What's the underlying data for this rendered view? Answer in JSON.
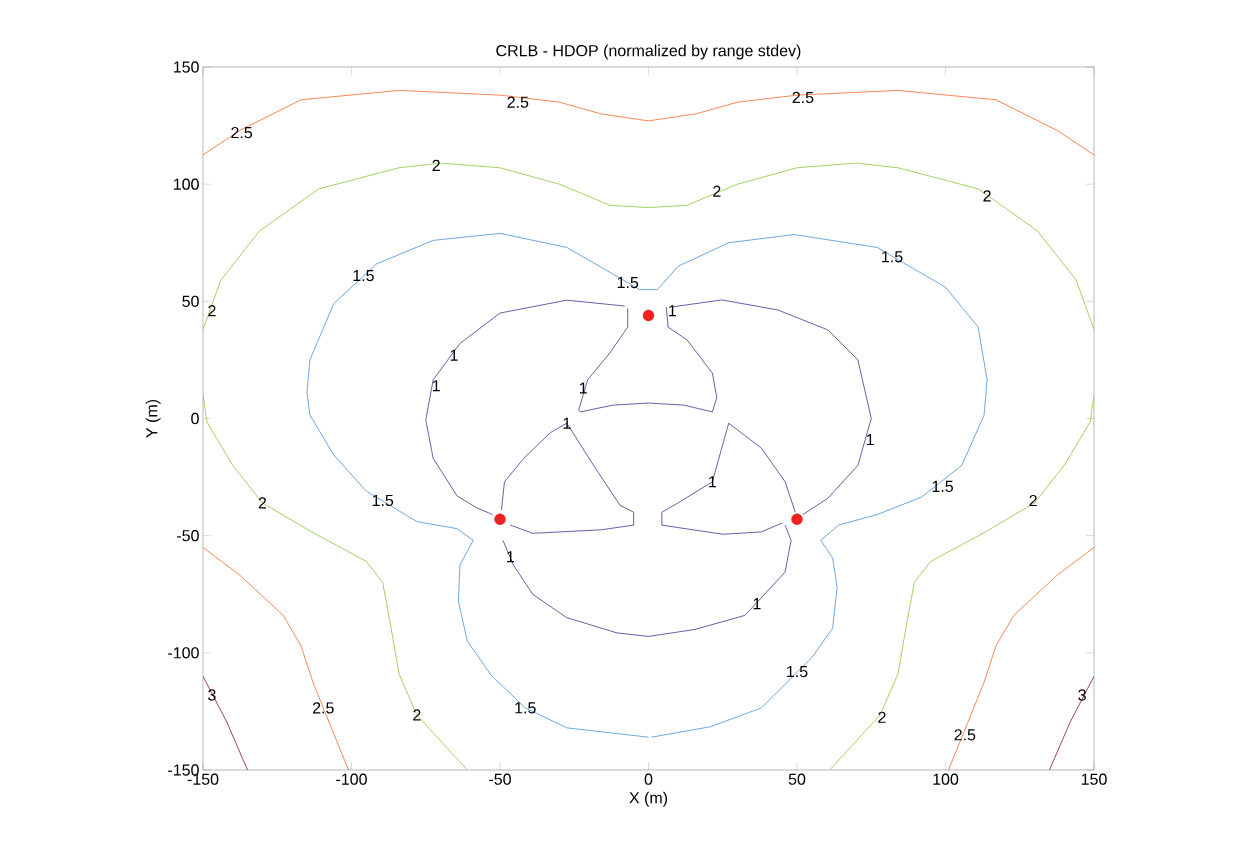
{
  "chart_data": {
    "type": "line",
    "title": "CRLB - HDOP (normalized by range stdev)",
    "xlabel": "X (m)",
    "ylabel": "Y (m)",
    "xlim": [
      -150,
      150
    ],
    "ylim": [
      -150,
      150
    ],
    "xticks": [
      -150,
      -100,
      -50,
      0,
      50,
      100,
      150
    ],
    "yticks": [
      -150,
      -100,
      -50,
      0,
      50,
      100,
      150
    ],
    "grid": false,
    "series": [
      {
        "type": "line",
        "color": "#f26b2a",
        "x": [
          -150,
          -137.5,
          -117,
          -84,
          -50,
          -30,
          -16,
          0,
          16,
          30,
          50,
          84,
          117,
          137.5,
          150
        ],
        "values": [
          112.5,
          123,
          136,
          140,
          138,
          135,
          130,
          127,
          130,
          135,
          138,
          140,
          136,
          123,
          112.5
        ]
      },
      {
        "type": "line",
        "color": "#8cc63f",
        "x": [
          -150,
          -144,
          -131,
          -111,
          -84,
          -70,
          -50,
          -30,
          -13,
          0,
          13,
          30,
          50,
          70,
          84,
          111,
          131,
          144,
          150
        ],
        "values": [
          38,
          59,
          80,
          98,
          107,
          109,
          107,
          100,
          91,
          90,
          91,
          100,
          107,
          109,
          107,
          98,
          80,
          59,
          38
        ]
      },
      {
        "type": "line",
        "color": "#8cc63f",
        "x": [
          -150,
          -148.7,
          -140,
          -130,
          -114,
          -95,
          -89.5,
          -87,
          -84,
          -78,
          -61
        ],
        "values": [
          10,
          -1.5,
          -20,
          -36,
          -48,
          -61,
          -70,
          -87,
          -109,
          -126.5,
          -150
        ]
      },
      {
        "type": "line",
        "color": "#8cc63f",
        "x": [
          150,
          148.7,
          140,
          130,
          114,
          95,
          89.5,
          87,
          84,
          78,
          61
        ],
        "values": [
          10,
          -1.5,
          -20,
          -36,
          -48,
          -61,
          -70,
          -87,
          -109,
          -126.5,
          -150
        ]
      },
      {
        "type": "line",
        "color": "#f26b2a",
        "x": [
          -150,
          -137.5,
          -123,
          -117,
          -113,
          -109.5,
          -101
        ],
        "values": [
          -55,
          -67,
          -84,
          -97,
          -112.5,
          -123.5,
          -150
        ]
      },
      {
        "type": "line",
        "color": "#f26b2a",
        "x": [
          150,
          137.5,
          123,
          117,
          113,
          109.5,
          101
        ],
        "values": [
          -55,
          -67,
          -84,
          -97,
          -112.5,
          -123.5,
          -150
        ]
      },
      {
        "type": "line",
        "color": "#8b1a1a",
        "x": [
          -150,
          -142,
          -135
        ],
        "values": [
          -110,
          -129.5,
          -150
        ]
      },
      {
        "type": "line",
        "color": "#8b1a1a",
        "x": [
          150,
          142,
          135
        ],
        "values": [
          -110,
          -129.5,
          -150
        ]
      },
      {
        "type": "line",
        "color": "#4a90d9",
        "x": [
          0,
          -27.5,
          -41.5,
          -53,
          -61,
          -64,
          -63.5,
          -59,
          -64.5,
          -78,
          -95,
          -106,
          -114,
          -115,
          -114,
          -106,
          -91.5,
          -72.5,
          -50,
          -27.5,
          -7,
          -3,
          3,
          10,
          27,
          49,
          77,
          100,
          111,
          114,
          113,
          105.5,
          92,
          77,
          64,
          58,
          62,
          63.5,
          62,
          55,
          38,
          21,
          1
        ],
        "values": [
          -136,
          -132,
          -123.5,
          -109.5,
          -95,
          -78,
          -62.5,
          -52,
          -47,
          -44,
          -31,
          -15.5,
          1.5,
          11,
          25,
          49,
          66,
          76,
          79,
          73,
          58,
          55,
          55,
          65,
          75,
          78.5,
          73,
          56,
          39,
          16.5,
          1.5,
          -20,
          -33.5,
          -41,
          -45.5,
          -52,
          -59.5,
          -72,
          -89.5,
          -102,
          -123.5,
          -131.5,
          -136
        ]
      },
      {
        "type": "line",
        "color": "#3b3b8f",
        "x": [
          -7,
          -7,
          -13,
          -20.5,
          -23.5,
          -23,
          -12,
          0,
          12,
          21.5,
          23,
          21.5,
          13,
          6.6,
          6
        ],
        "values": [
          47,
          39,
          28,
          16.5,
          3.6,
          2.8,
          5.7,
          6.6,
          5.7,
          2.8,
          9,
          19.4,
          33.5,
          39,
          47.5
        ]
      },
      {
        "type": "line",
        "color": "#3b3b8f",
        "x": [
          -8,
          -27.5,
          -50,
          -63.5,
          -72.5,
          -75,
          -72.5,
          -64.5,
          -58,
          -52.5
        ],
        "values": [
          48,
          50.5,
          45,
          32,
          16.5,
          -0.6,
          -17,
          -33,
          -38,
          -41
        ]
      },
      {
        "type": "line",
        "color": "#3b3b8f",
        "x": [
          -49.5,
          -48.5,
          -42,
          -33,
          -27.5,
          -18.5,
          -9.6,
          -5,
          -5,
          -16,
          -39,
          -46.5
        ],
        "values": [
          -39,
          -27,
          -17,
          -6,
          -2,
          -20,
          -37,
          -40,
          -45.5,
          -47.5,
          -49,
          -45.5
        ]
      },
      {
        "type": "line",
        "color": "#3b3b8f",
        "x": [
          -49,
          -45.5,
          -39,
          -27.5,
          -10.6,
          0,
          15.7,
          32.5,
          46,
          48,
          46
        ],
        "values": [
          -52,
          -62.5,
          -75,
          -85,
          -91.5,
          -93,
          -90,
          -84,
          -65.5,
          -52,
          -45.5
        ]
      },
      {
        "type": "line",
        "color": "#3b3b8f",
        "x": [
          45,
          38,
          25,
          4.5,
          4.5,
          10,
          21.5,
          27,
          38,
          46,
          49.4
        ],
        "values": [
          -44.6,
          -48.4,
          -49.4,
          -45.5,
          -40,
          -36,
          -27,
          -2,
          -12.6,
          -27,
          -40
        ]
      },
      {
        "type": "line",
        "color": "#3b3b8f",
        "x": [
          52,
          60.4,
          70.5,
          75,
          70.5,
          60.4,
          43.6,
          24.7,
          7.9
        ],
        "values": [
          -41,
          -34,
          -20,
          0,
          25,
          37.8,
          46.3,
          50.6,
          47.6
        ]
      },
      {
        "type": "scatter",
        "color": "#ee2222",
        "marker": "circle",
        "x": [
          0,
          -50,
          50
        ],
        "values": [
          44,
          -43,
          -43
        ]
      }
    ],
    "annotations": [
      {
        "text": "2.5",
        "x": -137,
        "y": 122
      },
      {
        "text": "2.5",
        "x": -44,
        "y": 135
      },
      {
        "text": "2.5",
        "x": 52,
        "y": 137
      },
      {
        "text": "2",
        "x": -71.5,
        "y": 108
      },
      {
        "text": "2",
        "x": 23,
        "y": 97
      },
      {
        "text": "2",
        "x": 114,
        "y": 95
      },
      {
        "text": "2",
        "x": -147,
        "y": 46
      },
      {
        "text": "2",
        "x": -130,
        "y": -36
      },
      {
        "text": "2",
        "x": -78,
        "y": -126.5
      },
      {
        "text": "2",
        "x": 129.5,
        "y": -35
      },
      {
        "text": "2",
        "x": 78.6,
        "y": -127.5
      },
      {
        "text": "2.5",
        "x": -109.5,
        "y": -123.5
      },
      {
        "text": "2.5",
        "x": 106.5,
        "y": -135
      },
      {
        "text": "3",
        "x": -147,
        "y": -118
      },
      {
        "text": "3",
        "x": 146,
        "y": -118
      },
      {
        "text": "1.5",
        "x": -96,
        "y": 61
      },
      {
        "text": "1.5",
        "x": -7,
        "y": 58
      },
      {
        "text": "1.5",
        "x": 82,
        "y": 69
      },
      {
        "text": "1.5",
        "x": -89.5,
        "y": -35
      },
      {
        "text": "1.5",
        "x": 99,
        "y": -29
      },
      {
        "text": "1.5",
        "x": -41.5,
        "y": -123.5
      },
      {
        "text": "1.5",
        "x": 50,
        "y": -108
      },
      {
        "text": "1",
        "x": -22,
        "y": 13
      },
      {
        "text": "1",
        "x": -65.5,
        "y": 27
      },
      {
        "text": "1",
        "x": -71.5,
        "y": 14
      },
      {
        "text": "1",
        "x": 8,
        "y": 46
      },
      {
        "text": "1",
        "x": -27.5,
        "y": -2
      },
      {
        "text": "1",
        "x": -46.5,
        "y": -59
      },
      {
        "text": "1",
        "x": 21.5,
        "y": -27
      },
      {
        "text": "1",
        "x": 74.6,
        "y": -9
      },
      {
        "text": "1",
        "x": 36.5,
        "y": -79
      }
    ]
  }
}
